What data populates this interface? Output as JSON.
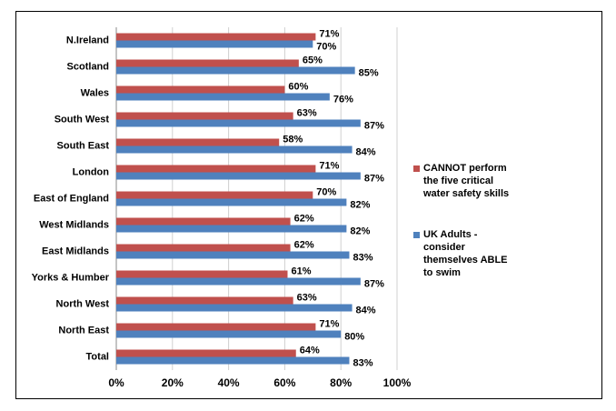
{
  "chart_data": {
    "type": "hbar",
    "categories": [
      "N.Ireland",
      "Scotland",
      "Wales",
      "South West",
      "South East",
      "London",
      "East of England",
      "West Midlands",
      "East Midlands",
      "Yorks & Humber",
      "North West",
      "North East",
      "Total"
    ],
    "series": [
      {
        "name": "CANNOT perform the five critical water safety skills",
        "color": "#c0504d",
        "values": [
          71,
          65,
          60,
          63,
          58,
          71,
          70,
          62,
          62,
          61,
          63,
          71,
          64
        ],
        "value_labels": [
          "71%",
          "65%",
          "60%",
          "63%",
          "58%",
          "71%",
          "70%",
          "62%",
          "62%",
          "61%",
          "63%",
          "71%",
          "64%"
        ]
      },
      {
        "name": "UK Adults - consider themselves ABLE to swim",
        "color": "#4f81bd",
        "values": [
          70,
          85,
          76,
          87,
          84,
          87,
          82,
          82,
          83,
          87,
          84,
          80,
          83
        ],
        "value_labels": [
          "70%",
          "85%",
          "76%",
          "87%",
          "84%",
          "87%",
          "82%",
          "82%",
          "83%",
          "87%",
          "84%",
          "80%",
          "83%"
        ]
      }
    ],
    "xlim": [
      0,
      100
    ],
    "xticks": [
      {
        "value": 0,
        "label": "0%"
      },
      {
        "value": 20,
        "label": "20%"
      },
      {
        "value": 40,
        "label": "40%"
      },
      {
        "value": 60,
        "label": "60%"
      },
      {
        "value": 80,
        "label": "80%"
      },
      {
        "value": 100,
        "label": "100%"
      }
    ],
    "grid": true
  }
}
